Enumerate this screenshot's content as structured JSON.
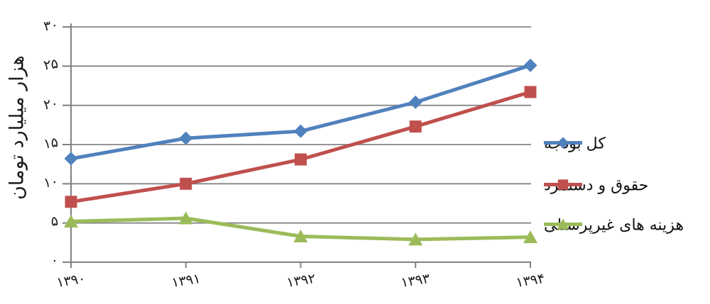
{
  "chart_data": {
    "type": "line",
    "title": "",
    "ylabel": "هزار میلیارد تومان",
    "xlabel": "",
    "direction": "rtl",
    "grid": true,
    "legend_position": "right",
    "ylim": [
      0,
      30
    ],
    "categories": [
      "۱۳۹۰",
      "۱۳۹۱",
      "۱۳۹۲",
      "۱۳۹۳",
      "۱۳۹۴"
    ],
    "y_ticks": [
      {
        "value": 0,
        "label": "۰"
      },
      {
        "value": 5,
        "label": "۵"
      },
      {
        "value": 10,
        "label": "۱۰"
      },
      {
        "value": 15,
        "label": "۱۵"
      },
      {
        "value": 20,
        "label": "۲۰"
      },
      {
        "value": 25,
        "label": "۲۵"
      },
      {
        "value": 30,
        "label": "۳۰"
      }
    ],
    "series": [
      {
        "name": "کل بودجه",
        "marker": "diamond",
        "color": "#4F81BD",
        "values": [
          13.2,
          15.8,
          16.7,
          20.4,
          25.1
        ]
      },
      {
        "name": "حقوق و دستمزد",
        "marker": "square",
        "color": "#C0504D",
        "values": [
          7.7,
          10.0,
          13.1,
          17.3,
          21.7
        ]
      },
      {
        "name": "هزینه های غیرپرسنلی",
        "marker": "triangle",
        "color": "#9BBB59",
        "values": [
          5.2,
          5.6,
          3.3,
          2.9,
          3.2
        ]
      }
    ]
  },
  "colors": {
    "background": "#ffffff",
    "axis": "#808080",
    "grid": "#868686",
    "text": "#1a1a1a"
  }
}
